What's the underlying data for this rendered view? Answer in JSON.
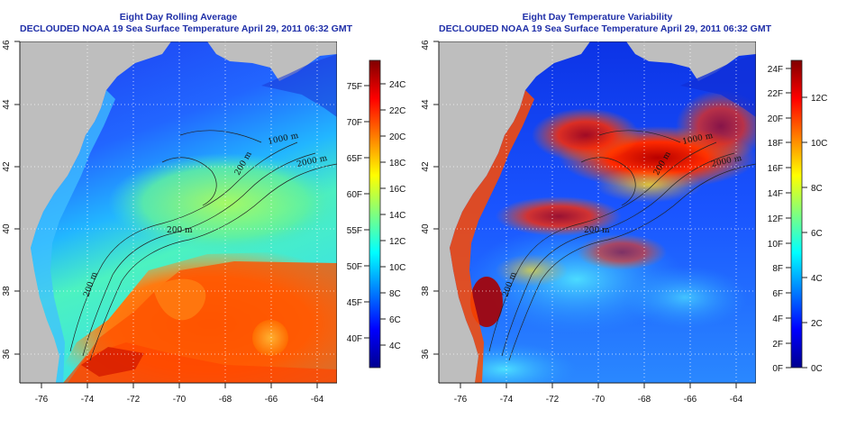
{
  "left_panel": {
    "title": "Eight Day Rolling Average",
    "subtitle": "DECLOUDED NOAA 19 Sea Surface Temperature April 29, 2011 06:32 GMT",
    "colorbar": {
      "fahrenheit_labels": [
        "75F",
        "70F",
        "65F",
        "60F",
        "55F",
        "50F",
        "45F",
        "40F"
      ],
      "celsius_labels": [
        "24C",
        "22C",
        "20C",
        "18C",
        "16C",
        "14C",
        "12C",
        "10C",
        "8C",
        "6C",
        "4C"
      ]
    },
    "contour_labels": [
      "200 m",
      "1000 m",
      "2000 m",
      "200 m",
      "200 m"
    ]
  },
  "right_panel": {
    "title": "Eight Day Temperature Variability",
    "subtitle": "DECLOUDED NOAA 19 Sea Surface Temperature April 29, 2011 06:32 GMT",
    "colorbar": {
      "fahrenheit_labels": [
        "24F",
        "22F",
        "20F",
        "18F",
        "16F",
        "14F",
        "12F",
        "10F",
        "8F",
        "6F",
        "4F",
        "2F",
        "0F"
      ],
      "celsius_labels": [
        "12C",
        "10C",
        "8C",
        "6C",
        "4C",
        "2C",
        "0C"
      ]
    },
    "contour_labels": [
      "200 m",
      "1000 m",
      "2000 m",
      "200 m",
      "200 m"
    ]
  },
  "axes": {
    "x_ticks": [
      "-76",
      "-74",
      "-72",
      "-70",
      "-68",
      "-66",
      "-64"
    ],
    "y_ticks": [
      "36",
      "38",
      "40",
      "42",
      "44",
      "46"
    ]
  },
  "colors": {
    "land": "#bebebe",
    "title": "#1f2fa8",
    "cold": "#00008b",
    "warm": "#8b0000"
  }
}
